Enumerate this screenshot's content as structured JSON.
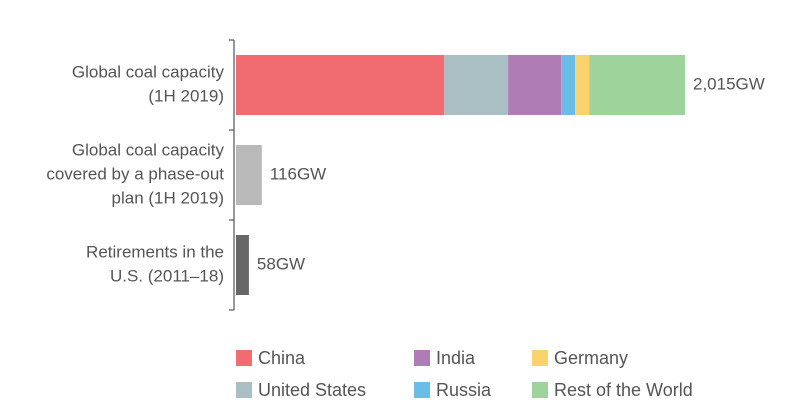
{
  "chart_data": {
    "type": "bar",
    "orientation": "horizontal",
    "stacked": true,
    "categories": [
      [
        "Global coal capacity",
        "(1H 2019)"
      ],
      [
        "Global coal capacity",
        "covered by a phase-out",
        "plan (1H 2019)"
      ],
      [
        "Retirements in the",
        "U.S. (2011–18)"
      ]
    ],
    "values": [
      2015,
      116,
      58
    ],
    "value_labels": [
      "2,015GW",
      "116GW",
      "58GW"
    ],
    "colors": [
      null,
      "#b9b9b9",
      "#676767"
    ],
    "series": [
      {
        "name": "China",
        "color": "#f06c71",
        "values": [
          934,
          null,
          null
        ]
      },
      {
        "name": "United States",
        "color": "#a9bfc3",
        "values": [
          287,
          null,
          null
        ]
      },
      {
        "name": "India",
        "color": "#b07cb5",
        "values": [
          238,
          null,
          null
        ]
      },
      {
        "name": "Russia",
        "color": "#6cbde6",
        "values": [
          63,
          null,
          null
        ]
      },
      {
        "name": "Germany",
        "color": "#f8d36c",
        "values": [
          63,
          null,
          null
        ]
      },
      {
        "name": "Rest of the World",
        "color": "#9ed49b",
        "values": [
          430,
          null,
          null
        ]
      }
    ]
  }
}
